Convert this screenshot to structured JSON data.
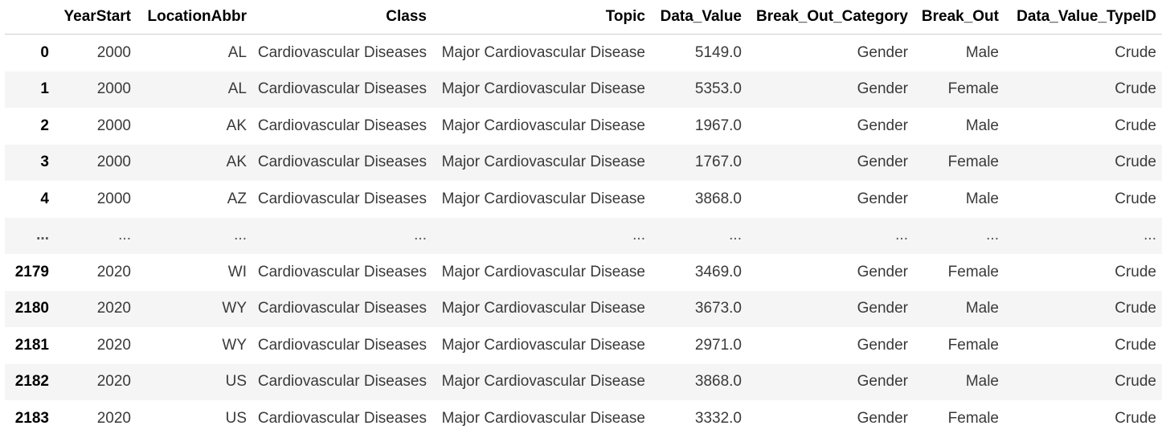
{
  "table": {
    "index_header": "",
    "columns": [
      "YearStart",
      "LocationAbbr",
      "Class",
      "Topic",
      "Data_Value",
      "Break_Out_Category",
      "Break_Out",
      "Data_Value_TypeID"
    ],
    "rows": [
      {
        "index": "0",
        "cells": [
          "2000",
          "AL",
          "Cardiovascular Diseases",
          "Major Cardiovascular Disease",
          "5149.0",
          "Gender",
          "Male",
          "Crude"
        ]
      },
      {
        "index": "1",
        "cells": [
          "2000",
          "AL",
          "Cardiovascular Diseases",
          "Major Cardiovascular Disease",
          "5353.0",
          "Gender",
          "Female",
          "Crude"
        ]
      },
      {
        "index": "2",
        "cells": [
          "2000",
          "AK",
          "Cardiovascular Diseases",
          "Major Cardiovascular Disease",
          "1967.0",
          "Gender",
          "Male",
          "Crude"
        ]
      },
      {
        "index": "3",
        "cells": [
          "2000",
          "AK",
          "Cardiovascular Diseases",
          "Major Cardiovascular Disease",
          "1767.0",
          "Gender",
          "Female",
          "Crude"
        ]
      },
      {
        "index": "4",
        "cells": [
          "2000",
          "AZ",
          "Cardiovascular Diseases",
          "Major Cardiovascular Disease",
          "3868.0",
          "Gender",
          "Male",
          "Crude"
        ]
      },
      {
        "index": "...",
        "cells": [
          "...",
          "...",
          "...",
          "...",
          "...",
          "...",
          "...",
          "..."
        ]
      },
      {
        "index": "2179",
        "cells": [
          "2020",
          "WI",
          "Cardiovascular Diseases",
          "Major Cardiovascular Disease",
          "3469.0",
          "Gender",
          "Female",
          "Crude"
        ]
      },
      {
        "index": "2180",
        "cells": [
          "2020",
          "WY",
          "Cardiovascular Diseases",
          "Major Cardiovascular Disease",
          "3673.0",
          "Gender",
          "Male",
          "Crude"
        ]
      },
      {
        "index": "2181",
        "cells": [
          "2020",
          "WY",
          "Cardiovascular Diseases",
          "Major Cardiovascular Disease",
          "2971.0",
          "Gender",
          "Female",
          "Crude"
        ]
      },
      {
        "index": "2182",
        "cells": [
          "2020",
          "US",
          "Cardiovascular Diseases",
          "Major Cardiovascular Disease",
          "3868.0",
          "Gender",
          "Male",
          "Crude"
        ]
      },
      {
        "index": "2183",
        "cells": [
          "2020",
          "US",
          "Cardiovascular Diseases",
          "Major Cardiovascular Disease",
          "3332.0",
          "Gender",
          "Female",
          "Crude"
        ]
      }
    ]
  }
}
